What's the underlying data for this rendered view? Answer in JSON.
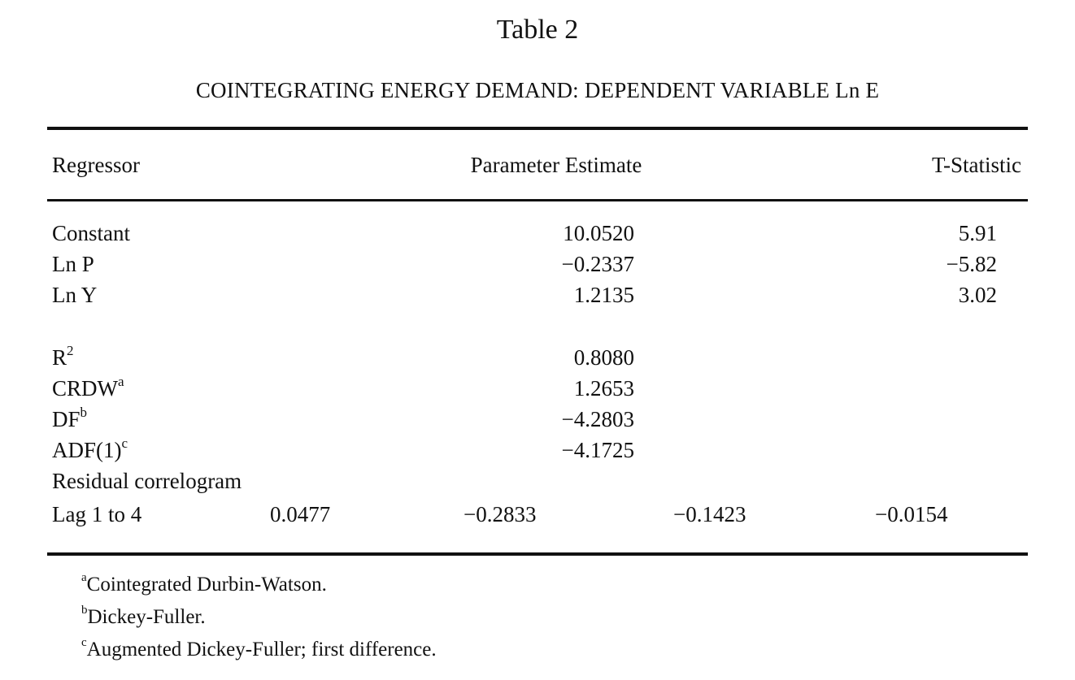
{
  "title": "Table 2",
  "subtitle": "COINTEGRATING ENERGY DEMAND: DEPENDENT VARIABLE Ln E",
  "headers": {
    "regressor": "Regressor",
    "estimate": "Parameter Estimate",
    "tstat": "T-Statistic"
  },
  "rows": [
    {
      "label": "Constant",
      "estimate": "10.0520",
      "tstat": "5.91"
    },
    {
      "label": "Ln P",
      "estimate": "−0.2337",
      "tstat": "−5.82"
    },
    {
      "label": "Ln Y",
      "estimate": "1.2135",
      "tstat": "3.02"
    }
  ],
  "stats": [
    {
      "label": "R",
      "sup": "2",
      "estimate": "0.8080"
    },
    {
      "label": "CRDW",
      "sup": "a",
      "estimate": "1.2653"
    },
    {
      "label": "DF",
      "sup": "b",
      "estimate": "−4.2803"
    },
    {
      "label": "ADF(1)",
      "sup": "c",
      "estimate": "−4.1725"
    }
  ],
  "correlogram": {
    "label": "Residual correlogram",
    "lag_label": "Lag 1 to 4",
    "values": [
      "0.0477",
      "−0.2833",
      "−0.1423",
      "−0.0154"
    ]
  },
  "footnotes": [
    {
      "mark": "a",
      "text": "Cointegrated Durbin-Watson."
    },
    {
      "mark": "b",
      "text": "Dickey-Fuller."
    },
    {
      "mark": "c",
      "text": "Augmented Dickey-Fuller; first difference."
    }
  ]
}
